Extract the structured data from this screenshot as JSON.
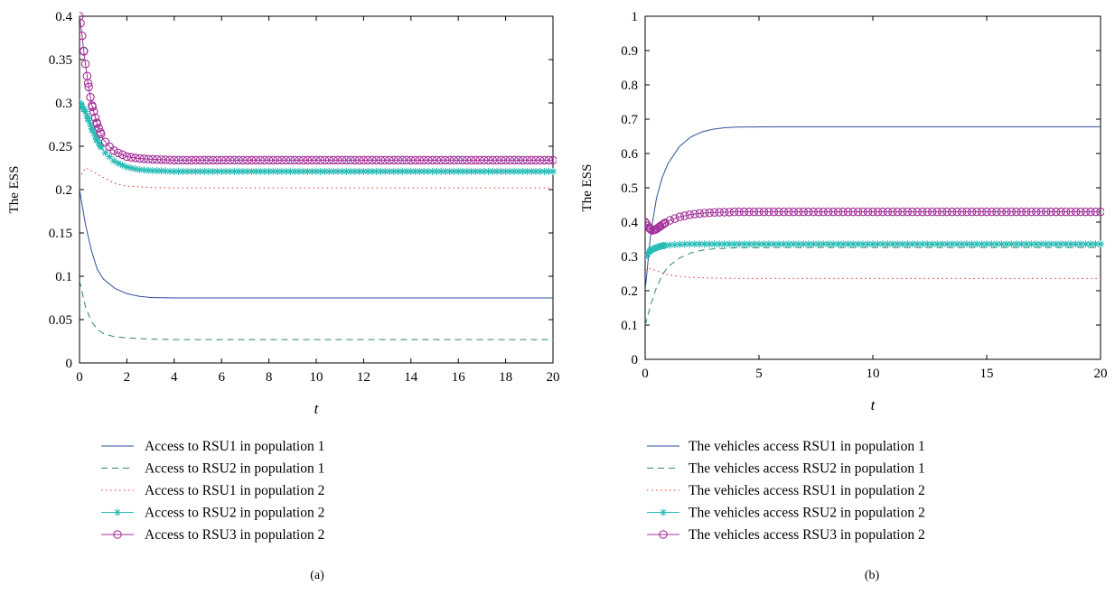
{
  "chart_data": [
    {
      "type": "line",
      "caption": "(a)",
      "xlabel": "t",
      "ylabel": "The ESS",
      "xlim": [
        0,
        20
      ],
      "ylim": [
        0,
        0.4
      ],
      "xticks": [
        0,
        2,
        4,
        6,
        8,
        10,
        12,
        14,
        16,
        18,
        20
      ],
      "yticks": [
        0,
        0.05,
        0.1,
        0.15,
        0.2,
        0.25,
        0.3,
        0.35,
        0.4
      ],
      "grid": false,
      "legend_position": "below",
      "series": [
        {
          "name": "Access to RSU1 in population 1",
          "color": "#2f4e9c",
          "style": "solid",
          "marker": "none",
          "x": [
            0,
            0.25,
            0.5,
            0.75,
            1,
            1.5,
            2,
            2.5,
            3,
            4,
            6,
            10,
            20
          ],
          "y": [
            0.2,
            0.16,
            0.13,
            0.108,
            0.097,
            0.086,
            0.08,
            0.077,
            0.0755,
            0.075,
            0.075,
            0.075,
            0.075
          ]
        },
        {
          "name": "Access to RSU2 in population 1",
          "color": "#2e8b57",
          "style": "dashed",
          "marker": "none",
          "x": [
            0,
            0.25,
            0.5,
            0.75,
            1,
            1.5,
            2,
            3,
            4,
            6,
            10,
            20
          ],
          "y": [
            0.095,
            0.065,
            0.048,
            0.039,
            0.034,
            0.03,
            0.029,
            0.0275,
            0.027,
            0.027,
            0.027,
            0.027
          ]
        },
        {
          "name": "Access to RSU1 in population 2",
          "color": "#e03030",
          "style": "dotted",
          "marker": "none",
          "x": [
            0,
            0.25,
            0.5,
            1,
            1.5,
            2,
            3,
            4,
            6,
            10,
            20
          ],
          "y": [
            0.213,
            0.225,
            0.222,
            0.214,
            0.207,
            0.204,
            0.2025,
            0.202,
            0.202,
            0.202,
            0.202
          ]
        },
        {
          "name": "Access to RSU2 in population 2",
          "color": "#27bcb6",
          "style": "solid",
          "marker": "star",
          "x": [
            0,
            0.25,
            0.5,
            0.75,
            1,
            1.5,
            2,
            2.5,
            3,
            4,
            6,
            10,
            20
          ],
          "y": [
            0.3,
            0.29,
            0.272,
            0.257,
            0.245,
            0.232,
            0.226,
            0.223,
            0.222,
            0.221,
            0.221,
            0.221,
            0.221
          ]
        },
        {
          "name": "Access to RSU3 in population 2",
          "color": "#a3309a",
          "style": "solid",
          "marker": "circle",
          "x": [
            0,
            0.1,
            0.2,
            0.35,
            0.5,
            0.75,
            1,
            1.25,
            1.5,
            2,
            2.5,
            3,
            4,
            6,
            10,
            20
          ],
          "y": [
            0.4,
            0.38,
            0.355,
            0.325,
            0.3,
            0.275,
            0.258,
            0.25,
            0.244,
            0.238,
            0.236,
            0.235,
            0.234,
            0.234,
            0.234,
            0.234
          ]
        }
      ]
    },
    {
      "type": "line",
      "caption": "(b)",
      "xlabel": "t",
      "ylabel": "The ESS",
      "xlim": [
        0,
        20
      ],
      "ylim": [
        0,
        1
      ],
      "xticks": [
        0,
        5,
        10,
        15,
        20
      ],
      "yticks": [
        0,
        0.1,
        0.2,
        0.3,
        0.4,
        0.5,
        0.6,
        0.7,
        0.8,
        0.9,
        1
      ],
      "grid": false,
      "legend_position": "below",
      "series": [
        {
          "name": "The vehicles access RSU1 in population 1",
          "color": "#2f4e9c",
          "style": "solid",
          "marker": "none",
          "x": [
            0,
            0.25,
            0.5,
            0.75,
            1,
            1.5,
            2,
            2.5,
            3,
            3.5,
            4,
            6,
            10,
            20
          ],
          "y": [
            0.2,
            0.37,
            0.47,
            0.53,
            0.57,
            0.62,
            0.648,
            0.663,
            0.671,
            0.675,
            0.677,
            0.678,
            0.678,
            0.678
          ]
        },
        {
          "name": "The vehicles access RSU2 in population 1",
          "color": "#2e8b57",
          "style": "dashed",
          "marker": "none",
          "x": [
            0,
            0.25,
            0.5,
            0.75,
            1,
            1.5,
            2,
            2.5,
            3,
            4,
            6,
            10,
            20
          ],
          "y": [
            0.1,
            0.16,
            0.21,
            0.245,
            0.27,
            0.295,
            0.31,
            0.318,
            0.322,
            0.325,
            0.326,
            0.326,
            0.326
          ]
        },
        {
          "name": "The vehicles access RSU1 in population 2",
          "color": "#e03030",
          "style": "dotted",
          "marker": "none",
          "x": [
            0,
            0.25,
            0.5,
            0.75,
            1,
            1.5,
            2,
            3,
            4,
            6,
            10,
            20
          ],
          "y": [
            0.26,
            0.265,
            0.258,
            0.252,
            0.247,
            0.242,
            0.239,
            0.237,
            0.236,
            0.236,
            0.236,
            0.236
          ]
        },
        {
          "name": "The vehicles access RSU2 in population 2",
          "color": "#27bcb6",
          "style": "solid",
          "marker": "star",
          "x": [
            0,
            0.25,
            0.5,
            0.75,
            1,
            1.5,
            2,
            3,
            4,
            6,
            10,
            20
          ],
          "y": [
            0.3,
            0.318,
            0.326,
            0.331,
            0.333,
            0.335,
            0.336,
            0.336,
            0.336,
            0.336,
            0.336,
            0.336
          ]
        },
        {
          "name": "The vehicles access RSU3 in population 2",
          "color": "#a3309a",
          "style": "solid",
          "marker": "circle",
          "x": [
            0,
            0.15,
            0.3,
            0.5,
            0.75,
            1,
            1.5,
            2,
            2.5,
            3,
            4,
            6,
            10,
            20
          ],
          "y": [
            0.4,
            0.385,
            0.375,
            0.38,
            0.392,
            0.403,
            0.415,
            0.422,
            0.426,
            0.428,
            0.43,
            0.43,
            0.43,
            0.43
          ]
        }
      ]
    }
  ]
}
